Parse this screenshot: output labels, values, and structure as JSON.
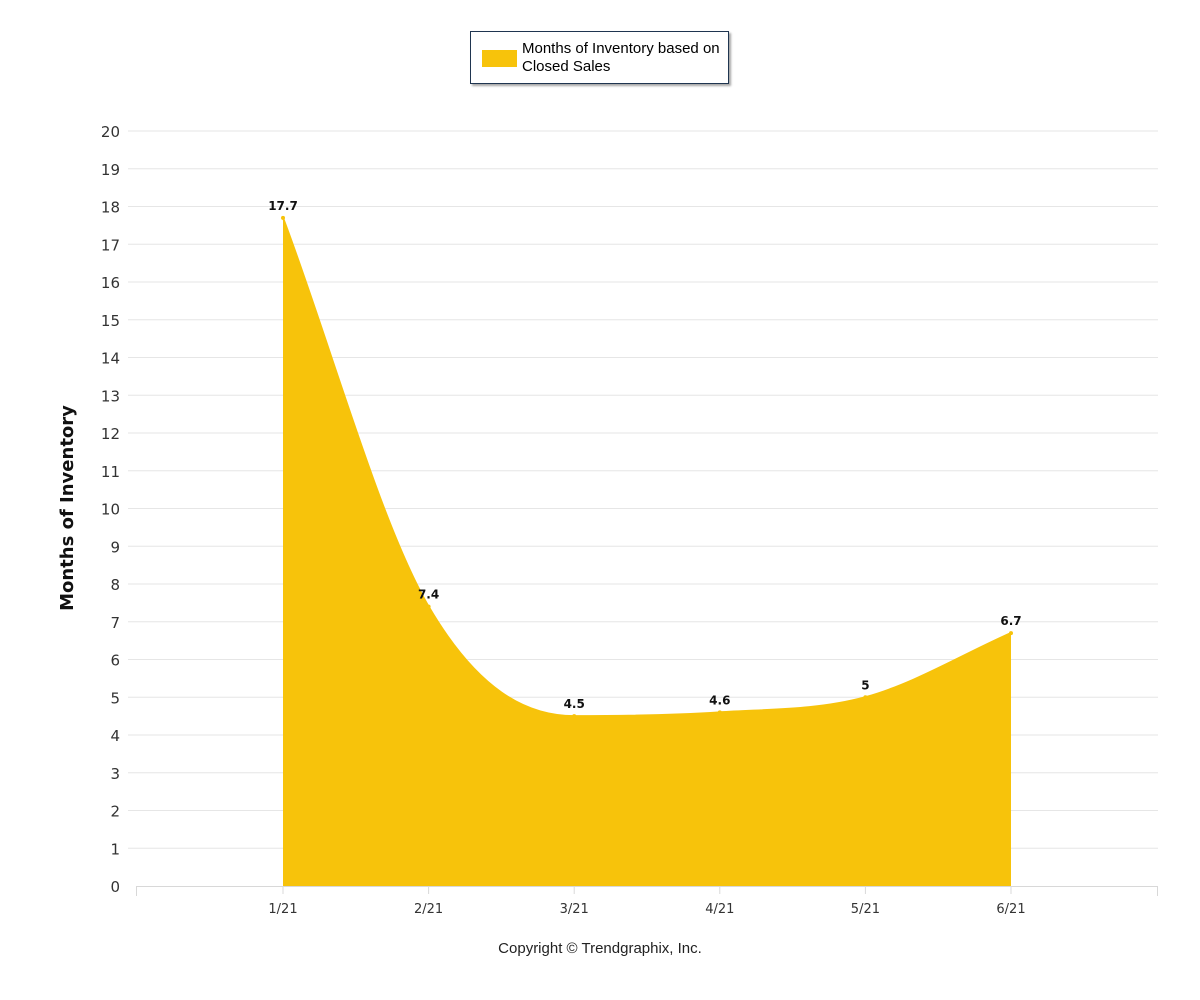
{
  "chart_data": {
    "type": "area",
    "categories": [
      "1/21",
      "2/21",
      "3/21",
      "4/21",
      "5/21",
      "6/21"
    ],
    "series": [
      {
        "name": "Months of Inventory based on Closed Sales",
        "values": [
          17.7,
          7.4,
          4.5,
          4.6,
          5,
          6.7
        ],
        "data_labels": [
          "17.7",
          "7.4",
          "4.5",
          "4.6",
          "5",
          "6.7"
        ],
        "color": "#F7C30B"
      }
    ],
    "ylabel": "Months of Inventory",
    "xlabel": "",
    "ylim": [
      0,
      20
    ],
    "y_ticks": [
      "0",
      "1",
      "2",
      "3",
      "4",
      "5",
      "6",
      "7",
      "8",
      "9",
      "10",
      "11",
      "12",
      "13",
      "14",
      "15",
      "16",
      "17",
      "18",
      "19",
      "20"
    ],
    "grid": true,
    "legend_position": "top-center",
    "grid_color": "#e6e6e6"
  },
  "legend": {
    "label": "Months of Inventory based on Closed Sales"
  },
  "footer": {
    "copyright": "Copyright © Trendgraphix, Inc."
  }
}
